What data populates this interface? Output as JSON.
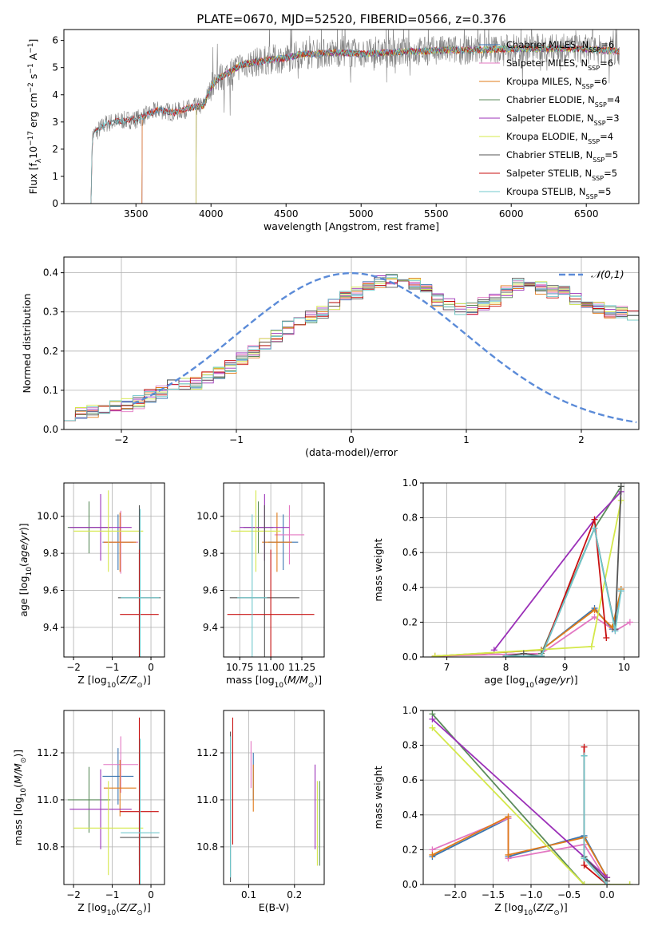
{
  "figure": {
    "title": "PLATE=0670, MJD=52520, FIBERID=0566, z=0.376"
  },
  "colors": {
    "Chabrier MILES": "#3a75b0",
    "Salpeter MILES": "#e377c2",
    "Kroupa MILES": "#e07b1a",
    "Chabrier ELODIE": "#5a8a5a",
    "Salpeter ELODIE": "#9b30b8",
    "Kroupa ELODIE": "#d4e84a",
    "Chabrier STELIB": "#555555",
    "Salpeter STELIB": "#c81010",
    "Kroupa STELIB": "#70c8cc",
    "normal": "#5b8bd8",
    "data": "#808080",
    "grid": "#b0b0b0"
  },
  "chart_data": [
    {
      "id": "spectrum",
      "type": "line",
      "xlabel": "wavelength [Angstrom, rest frame]",
      "ylabel": "Flux [f_λ10^-17 erg cm^-2 s^-1 A^-1]",
      "xlim": [
        3020,
        6850
      ],
      "ylim": [
        0,
        6.4
      ],
      "xticks": [
        3500,
        4000,
        4500,
        5000,
        5500,
        6000,
        6500
      ],
      "yticks": [
        0,
        1,
        2,
        3,
        4,
        5,
        6
      ],
      "grid": false,
      "legend": "right",
      "series": [
        {
          "name": "Chabrier MILES, N_SSP=6",
          "start": 3540
        },
        {
          "name": "Salpeter MILES, N_SSP=6",
          "start": 3540
        },
        {
          "name": "Kroupa MILES, N_SSP=6",
          "start": 3540
        },
        {
          "name": "Chabrier ELODIE, N_SSP=4",
          "start": 3900
        },
        {
          "name": "Salpeter ELODIE, N_SSP=3",
          "start": 3900
        },
        {
          "name": "Kroupa ELODIE, N_SSP=4",
          "start": 3900
        },
        {
          "name": "Chabrier STELIB, N_SSP=5",
          "start": 3200
        },
        {
          "name": "Salpeter STELIB, N_SSP=5",
          "start": 3200
        },
        {
          "name": "Kroupa STELIB, N_SSP=5",
          "start": 3200
        }
      ],
      "continuum": [
        [
          3200,
          0
        ],
        [
          3210,
          2.5
        ],
        [
          3300,
          2.95
        ],
        [
          3400,
          3.05
        ],
        [
          3500,
          3.1
        ],
        [
          3550,
          3.2
        ],
        [
          3650,
          3.45
        ],
        [
          3750,
          3.35
        ],
        [
          3850,
          3.5
        ],
        [
          3950,
          3.6
        ],
        [
          4000,
          4.3
        ],
        [
          4050,
          4.6
        ],
        [
          4100,
          4.75
        ],
        [
          4200,
          5.1
        ],
        [
          4300,
          5.2
        ],
        [
          4400,
          5.3
        ],
        [
          4500,
          5.35
        ],
        [
          4600,
          5.5
        ],
        [
          4700,
          5.5
        ],
        [
          4800,
          5.55
        ],
        [
          4900,
          5.55
        ],
        [
          5000,
          5.5
        ],
        [
          5200,
          5.55
        ],
        [
          5400,
          5.6
        ],
        [
          5600,
          5.65
        ],
        [
          5800,
          5.65
        ],
        [
          6000,
          5.7
        ],
        [
          6200,
          5.7
        ],
        [
          6400,
          5.7
        ],
        [
          6600,
          5.65
        ],
        [
          6720,
          5.6
        ]
      ]
    },
    {
      "id": "residuals",
      "type": "histogram",
      "xlabel": "(data-model)/error",
      "ylabel": "Normed distribution",
      "xlim": [
        -2.5,
        2.5
      ],
      "ylim": [
        0,
        0.44
      ],
      "xticks": [
        -2,
        -1,
        0,
        1,
        2
      ],
      "yticks": [
        0.0,
        0.1,
        0.2,
        0.3,
        0.4
      ],
      "grid": true,
      "legend": "top-right",
      "normal_label": "𝒩(0,1)",
      "bin_width": 0.1,
      "bin_start": -2.5,
      "base": [
        0.04,
        0.043,
        0.048,
        0.054,
        0.058,
        0.062,
        0.07,
        0.085,
        0.095,
        0.11,
        0.117,
        0.12,
        0.13,
        0.145,
        0.16,
        0.18,
        0.2,
        0.215,
        0.24,
        0.26,
        0.27,
        0.285,
        0.3,
        0.32,
        0.34,
        0.35,
        0.365,
        0.375,
        0.38,
        0.37,
        0.375,
        0.365,
        0.33,
        0.32,
        0.31,
        0.31,
        0.32,
        0.33,
        0.35,
        0.37,
        0.37,
        0.36,
        0.35,
        0.35,
        0.33,
        0.32,
        0.31,
        0.3,
        0.3,
        0.29,
        0.28,
        0.27,
        0.26,
        0.24,
        0.22,
        0.2,
        0.18,
        0.16,
        0.15,
        0.14,
        0.13,
        0.12,
        0.11,
        0.1,
        0.09,
        0.085,
        0.08,
        0.075,
        0.075,
        0.07,
        0.065,
        0.06,
        0.055,
        0.05,
        0.045,
        0.04,
        0.035,
        0.03,
        0.03,
        0.03
      ]
    },
    {
      "id": "age-vs-z",
      "type": "errorbar",
      "xlabel": "Z [log10(Z/Z_sun)]",
      "ylabel": "age  [log10(age/yr)]",
      "xlim": [
        -2.25,
        0.35
      ],
      "ylim": [
        9.24,
        10.18
      ],
      "xticks": [
        -2,
        -1,
        0
      ],
      "yticks": [
        9.4,
        9.6,
        9.8,
        10.0
      ],
      "grid": true,
      "points": [
        {
          "model": "Chabrier MILES",
          "x": -0.85,
          "xerr": 0.4,
          "y": 9.86,
          "yerr": 0.15
        },
        {
          "model": "Salpeter MILES",
          "x": -0.78,
          "xerr": 0.45,
          "y": 9.86,
          "yerr": 0.17
        },
        {
          "model": "Kroupa MILES",
          "x": -0.8,
          "xerr": 0.42,
          "y": 9.86,
          "yerr": 0.16
        },
        {
          "model": "Chabrier ELODIE",
          "x": -1.6,
          "xerr": 0.55,
          "y": 9.94,
          "yerr": 0.14
        },
        {
          "model": "Salpeter ELODIE",
          "x": -1.3,
          "xerr": 0.8,
          "y": 9.94,
          "yerr": 0.18
        },
        {
          "model": "Kroupa ELODIE",
          "x": -1.1,
          "xerr": 0.9,
          "y": 9.92,
          "yerr": 0.22
        },
        {
          "model": "Chabrier STELIB",
          "x": -0.3,
          "xerr": 0.55,
          "y": 9.56,
          "yerr": 0.5
        },
        {
          "model": "Salpeter STELIB",
          "x": -0.3,
          "xerr": 0.5,
          "y": 9.47,
          "yerr": 0.35
        },
        {
          "model": "Kroupa STELIB",
          "x": -0.28,
          "xerr": 0.5,
          "y": 9.56,
          "yerr": 0.48
        }
      ]
    },
    {
      "id": "age-vs-mass",
      "type": "errorbar",
      "xlabel": "mass [log10(M/M_sun)]",
      "ylabel": "",
      "xlim": [
        10.62,
        11.43
      ],
      "ylim": [
        9.24,
        10.18
      ],
      "xticks": [
        10.75,
        11.0,
        11.25
      ],
      "yticks": [
        9.4,
        9.6,
        9.8,
        10.0
      ],
      "grid": true,
      "points": [
        {
          "model": "Chabrier MILES",
          "x": 11.1,
          "xerr": 0.12,
          "y": 9.86,
          "yerr": 0.15
        },
        {
          "model": "Salpeter MILES",
          "x": 11.15,
          "xerr": 0.12,
          "y": 9.9,
          "yerr": 0.16
        },
        {
          "model": "Kroupa MILES",
          "x": 11.05,
          "xerr": 0.12,
          "y": 9.86,
          "yerr": 0.16
        },
        {
          "model": "Chabrier ELODIE",
          "x": 10.9,
          "xerr": 0.12,
          "y": 9.94,
          "yerr": 0.14
        },
        {
          "model": "Salpeter ELODIE",
          "x": 10.95,
          "xerr": 0.2,
          "y": 9.94,
          "yerr": 0.18
        },
        {
          "model": "Kroupa ELODIE",
          "x": 10.88,
          "xerr": 0.2,
          "y": 9.92,
          "yerr": 0.22
        },
        {
          "model": "Chabrier STELIB",
          "x": 10.95,
          "xerr": 0.28,
          "y": 9.56,
          "yerr": 0.5
        },
        {
          "model": "Salpeter STELIB",
          "x": 11.0,
          "xerr": 0.35,
          "y": 9.47,
          "yerr": 0.35
        },
        {
          "model": "Kroupa STELIB",
          "x": 10.85,
          "xerr": 0.12,
          "y": 9.56,
          "yerr": 0.45
        }
      ]
    },
    {
      "id": "weight-vs-age",
      "type": "line",
      "xlabel": "age  [log10(age/yr)]",
      "ylabel": "mass weight",
      "xlim": [
        6.6,
        10.25
      ],
      "ylim": [
        0,
        1
      ],
      "xticks": [
        7,
        8,
        9,
        10
      ],
      "yticks": [
        0.0,
        0.2,
        0.4,
        0.6,
        0.8,
        1.0
      ],
      "grid": true,
      "series": [
        {
          "model": "Chabrier MILES",
          "x": [
            6.8,
            8.6,
            9.5,
            9.8,
            9.95
          ],
          "y": [
            0.005,
            0.04,
            0.28,
            0.16,
            0.38
          ]
        },
        {
          "model": "Salpeter MILES",
          "x": [
            6.8,
            8.6,
            9.5,
            9.85,
            10.1
          ],
          "y": [
            0.005,
            0.02,
            0.23,
            0.15,
            0.2
          ]
        },
        {
          "model": "Kroupa MILES",
          "x": [
            6.8,
            8.6,
            9.5,
            9.8,
            9.95
          ],
          "y": [
            0.005,
            0.04,
            0.27,
            0.17,
            0.39
          ]
        },
        {
          "model": "Chabrier ELODIE",
          "x": [
            8.6,
            9.5,
            9.95
          ],
          "y": [
            0.02,
            0.74,
            0.98
          ]
        },
        {
          "model": "Salpeter ELODIE",
          "x": [
            7.8,
            9.5,
            9.95
          ],
          "y": [
            0.04,
            0.79,
            0.95
          ]
        },
        {
          "model": "Kroupa ELODIE",
          "x": [
            6.8,
            9.45,
            9.95
          ],
          "y": [
            0.005,
            0.06,
            0.9
          ]
        },
        {
          "model": "Chabrier STELIB",
          "x": [
            8.0,
            8.3,
            8.6,
            9.5,
            9.85,
            9.95
          ],
          "y": [
            0.005,
            0.02,
            0.005,
            0.74,
            0.16,
            0.98
          ]
        },
        {
          "model": "Salpeter STELIB",
          "x": [
            8.0,
            8.6,
            9.5,
            9.7
          ],
          "y": [
            0.005,
            0.005,
            0.79,
            0.11
          ]
        },
        {
          "model": "Kroupa STELIB",
          "x": [
            8.0,
            8.6,
            9.5,
            9.85,
            9.95
          ],
          "y": [
            0.005,
            0.005,
            0.74,
            0.15,
            0.38
          ]
        }
      ]
    },
    {
      "id": "mass-vs-z",
      "type": "errorbar",
      "xlabel": "Z [log10(Z/Z_sun)]",
      "ylabel": "mass [log10(M/M_sun)]",
      "xlim": [
        -2.25,
        0.35
      ],
      "ylim": [
        10.64,
        11.38
      ],
      "xticks": [
        -2,
        -1,
        0
      ],
      "yticks": [
        10.8,
        11.0,
        11.2
      ],
      "grid": true,
      "points": [
        {
          "model": "Chabrier MILES",
          "x": -0.85,
          "xerr": 0.4,
          "y": 11.1,
          "yerr": 0.12
        },
        {
          "model": "Salpeter MILES",
          "x": -0.78,
          "xerr": 0.45,
          "y": 11.15,
          "yerr": 0.12
        },
        {
          "model": "Kroupa MILES",
          "x": -0.8,
          "xerr": 0.42,
          "y": 11.05,
          "yerr": 0.12
        },
        {
          "model": "Chabrier ELODIE",
          "x": -1.6,
          "xerr": 0.55,
          "y": 11.0,
          "yerr": 0.14
        },
        {
          "model": "Salpeter ELODIE",
          "x": -1.3,
          "xerr": 0.8,
          "y": 10.96,
          "yerr": 0.17
        },
        {
          "model": "Kroupa ELODIE",
          "x": -1.1,
          "xerr": 0.9,
          "y": 10.88,
          "yerr": 0.2
        },
        {
          "model": "Chabrier STELIB",
          "x": -0.3,
          "xerr": 0.5,
          "y": 10.84,
          "yerr": 0.12
        },
        {
          "model": "Salpeter STELIB",
          "x": -0.3,
          "xerr": 0.5,
          "y": 10.95,
          "yerr": 0.4
        },
        {
          "model": "Kroupa STELIB",
          "x": -0.28,
          "xerr": 0.5,
          "y": 10.86,
          "yerr": 0.4
        }
      ]
    },
    {
      "id": "mass-vs-ebv",
      "type": "errorbar",
      "xlabel": "E(B-V)",
      "ylabel": "",
      "xlim": [
        0.045,
        0.265
      ],
      "ylim": [
        10.64,
        11.38
      ],
      "xticks": [
        0.1,
        0.2
      ],
      "yticks": [
        10.8,
        11.0,
        11.2
      ],
      "grid": true,
      "points": [
        {
          "model": "Chabrier MILES",
          "x": 0.11,
          "xerr": 0,
          "y": 11.1,
          "yerr": 0.1
        },
        {
          "model": "Salpeter MILES",
          "x": 0.105,
          "xerr": 0,
          "y": 11.15,
          "yerr": 0.1
        },
        {
          "model": "Kroupa MILES",
          "x": 0.11,
          "xerr": 0,
          "y": 11.05,
          "yerr": 0.1
        },
        {
          "model": "Chabrier ELODIE",
          "x": 0.255,
          "xerr": 0,
          "y": 10.9,
          "yerr": 0.18
        },
        {
          "model": "Salpeter ELODIE",
          "x": 0.245,
          "xerr": 0,
          "y": 10.97,
          "yerr": 0.18
        },
        {
          "model": "Kroupa ELODIE",
          "x": 0.25,
          "xerr": 0,
          "y": 10.9,
          "yerr": 0.18
        },
        {
          "model": "Chabrier STELIB",
          "x": 0.06,
          "xerr": 0,
          "y": 10.97,
          "yerr": 0.32
        },
        {
          "model": "Salpeter STELIB",
          "x": 0.065,
          "xerr": 0,
          "y": 11.08,
          "yerr": 0.27
        },
        {
          "model": "Kroupa STELIB",
          "x": 0.06,
          "xerr": 0,
          "y": 10.97,
          "yerr": 0.3
        }
      ]
    },
    {
      "id": "weight-vs-z",
      "type": "line",
      "xlabel": "Z [log10(Z/Z_sun)]",
      "ylabel": "mass weight",
      "xlim": [
        -2.42,
        0.42
      ],
      "ylim": [
        0,
        1
      ],
      "xticks": [
        -2.0,
        -1.5,
        -1.0,
        -0.5,
        0.0
      ],
      "yticks": [
        0.0,
        0.2,
        0.4,
        0.6,
        0.8,
        1.0
      ],
      "grid": true,
      "series": [
        {
          "model": "Chabrier MILES",
          "x": [
            -2.3,
            -1.3,
            -1.3,
            -0.3,
            0.0
          ],
          "y": [
            0.16,
            0.38,
            0.16,
            0.28,
            0.04
          ]
        },
        {
          "model": "Salpeter MILES",
          "x": [
            -2.3,
            -1.3,
            -1.3,
            -0.3,
            0.0
          ],
          "y": [
            0.2,
            0.38,
            0.15,
            0.23,
            0.02
          ]
        },
        {
          "model": "Kroupa MILES",
          "x": [
            -2.3,
            -1.3,
            -1.3,
            -0.3,
            0.0
          ],
          "y": [
            0.17,
            0.39,
            0.17,
            0.27,
            0.04
          ]
        },
        {
          "model": "Chabrier ELODIE",
          "x": [
            -2.3,
            -0.3,
            0.3
          ],
          "y": [
            0.98,
            0.0,
            0.0
          ]
        },
        {
          "model": "Salpeter ELODIE",
          "x": [
            -2.3,
            0.0
          ],
          "y": [
            0.95,
            0.04
          ]
        },
        {
          "model": "Kroupa ELODIE",
          "x": [
            -2.3,
            -0.3,
            0.3
          ],
          "y": [
            0.9,
            0.0,
            0.0
          ]
        },
        {
          "model": "Chabrier STELIB",
          "x": [
            -0.3,
            -0.3,
            0.0
          ],
          "y": [
            0.74,
            0.16,
            0.02
          ]
        },
        {
          "model": "Salpeter STELIB",
          "x": [
            -0.3,
            -0.3,
            0.0
          ],
          "y": [
            0.79,
            0.11,
            0.0
          ]
        },
        {
          "model": "Kroupa STELIB",
          "x": [
            -0.3,
            -0.3,
            0.0
          ],
          "y": [
            0.74,
            0.15,
            0.0
          ]
        }
      ]
    }
  ]
}
